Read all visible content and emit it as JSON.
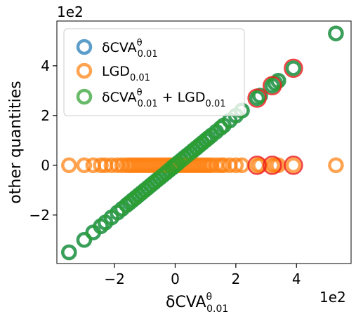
{
  "chart_data": {
    "type": "scatter",
    "xlabel_main": "δCVA",
    "xlabel_sup": "θ",
    "xlabel_sub": "0.01",
    "ylabel": "other quantities",
    "x_offset_label": "1e2",
    "y_offset_label": "1e2",
    "xlim": [
      -3.9,
      5.8
    ],
    "ylim": [
      -3.95,
      5.8
    ],
    "x_ticks": [
      -2,
      0,
      2,
      4
    ],
    "y_ticks": [
      -2,
      0,
      2,
      4
    ],
    "x_tick_labels": [
      "−2",
      "0",
      "2",
      "4"
    ],
    "y_tick_labels": [
      "−2",
      "0",
      "2",
      "4"
    ],
    "grid": false,
    "legend_position": "top-left",
    "series": [
      {
        "name": "δCVA_0.01^θ",
        "legend_main": "δCVA",
        "legend_sup": "θ",
        "legend_sub": "0.01",
        "legend_suffix": "",
        "color": "#1f77b4",
        "points_from": "x_values",
        "y_constant": null
      },
      {
        "name": "LGD_0.01",
        "legend_main": "LGD",
        "legend_sup": "",
        "legend_sub": "0.01",
        "legend_suffix": "",
        "color": "#ff7f0e",
        "y_constant": 0
      },
      {
        "name": "δCVA_0.01^θ + LGD_0.01",
        "legend_main": "δCVA",
        "legend_sup": "θ",
        "legend_sub": "0.01",
        "legend_suffix": " + LGD",
        "legend_suffix_sub": "0.01",
        "color": "#2ca02c",
        "y_equals_x": true
      }
    ],
    "x_values": [
      -3.5,
      -3.0,
      -2.7,
      -2.45,
      -2.3,
      -2.1,
      -1.9,
      -1.75,
      -1.6,
      -1.5,
      -1.4,
      -1.3,
      -1.2,
      -1.1,
      -1.0,
      -0.9,
      -0.8,
      -0.7,
      -0.6,
      -0.5,
      -0.4,
      -0.3,
      -0.2,
      -0.1,
      -0.05,
      0.0,
      0.05,
      0.1,
      0.2,
      0.3,
      0.4,
      0.5,
      0.6,
      0.7,
      0.8,
      0.9,
      1.0,
      1.1,
      1.2,
      1.35,
      1.5,
      1.6,
      1.8,
      2.0,
      2.2,
      2.7,
      2.8,
      3.2,
      3.3,
      3.4,
      3.9,
      5.3
    ],
    "highlighted_x": [
      2.7,
      3.2,
      3.9
    ],
    "highlight_color": "#ee2222",
    "marker_style": "hollow-circle"
  }
}
